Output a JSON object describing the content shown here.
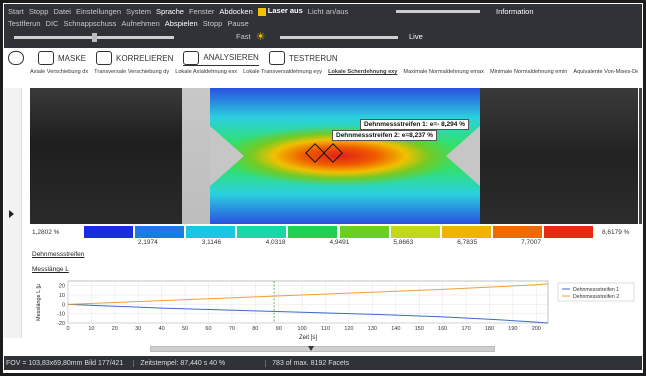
{
  "toolbar": {
    "row1": [
      "Start",
      "Stopp",
      "Datei",
      "Einstellungen",
      "System",
      "Sprache",
      "Fenster",
      "Abdocken",
      "Laser aus",
      "Licht an/aus",
      "Information"
    ],
    "row2": [
      "Testlferun",
      "DIC",
      "Schnappschuss",
      "Aufnehmen",
      "Abspielen",
      "Stopp",
      "Pause"
    ],
    "row3_fast": "Fast",
    "row3_live": "Live"
  },
  "tabs": [
    {
      "label": "MASKE",
      "icon": "mask-icon"
    },
    {
      "label": "KORRELIEREN",
      "icon": "correlate-icon"
    },
    {
      "label": "ANALYSIEREN",
      "icon": "analyze-icon"
    },
    {
      "label": "TESTRERUN",
      "icon": "testrerun-icon"
    }
  ],
  "result_tabs": [
    "Axiale Verschiebung dx",
    "Transversale Verschiebung dy",
    "Lokale Axialdehnung exx",
    "Lokale Transversaldehnung eyy",
    "Lokale Scherdehnung exy",
    "Maximale Normaldehnung emax",
    "Minimale Normaldehnung emin",
    "Äquivalente Von-Mises-Dehnung eeq",
    "Pu"
  ],
  "result_tab_selected": "Lokale Scherdehnung exy",
  "image": {
    "label1": "Dehnmessstreifen 1: e=- 8,294 %",
    "label2": "Dehnmessstreifen 2: e=8,237 %"
  },
  "scale": {
    "min": "1,2802 %",
    "max": "8,6179 %",
    "ticks": [
      "2,1974",
      "3,1146",
      "4,0318",
      "4,9491",
      "5,8663",
      "6,7835",
      "7,7007"
    ],
    "colors": [
      "#1a2ce0",
      "#1a7ae8",
      "#19c6e6",
      "#18d8a8",
      "#20d050",
      "#6ad020",
      "#c0d818",
      "#f0b400",
      "#f06a00",
      "#e82a10"
    ]
  },
  "sections": {
    "a": "Dehnmessstreifen",
    "b": "Messlänge L"
  },
  "chart_data": {
    "type": "line",
    "xlabel": "Zeit [s]",
    "ylabel": "Messlänge L [µ",
    "xlim": [
      0,
      205
    ],
    "ylim": [
      -20,
      25
    ],
    "xticks": [
      "0",
      "10",
      "20",
      "30",
      "40",
      "50",
      "60",
      "70",
      "80",
      "90",
      "100",
      "110",
      "120",
      "130",
      "140",
      "150",
      "160",
      "170",
      "180",
      "190",
      "200"
    ],
    "yticks": [
      "20",
      "10",
      "0",
      "-10",
      "-20"
    ],
    "cursor_x": 88,
    "series": [
      {
        "name": "Dehnmessstreifen 1",
        "color": "#3a6cc8",
        "x": [
          0,
          20,
          40,
          60,
          80,
          100,
          120,
          140,
          160,
          180,
          200,
          205
        ],
        "y": [
          0,
          -2,
          -4,
          -5.5,
          -7,
          -8.5,
          -10,
          -11.5,
          -13.5,
          -16,
          -19,
          -20
        ]
      },
      {
        "name": "Dehnmessstreifen 2",
        "color": "#f0a030",
        "x": [
          0,
          20,
          40,
          60,
          80,
          100,
          120,
          140,
          160,
          180,
          200,
          205
        ],
        "y": [
          0,
          2,
          4,
          6,
          8,
          10,
          12,
          14,
          16,
          18.5,
          21,
          22
        ]
      }
    ]
  },
  "status": {
    "fov": "FOV = 103,83x69,80mm Bild 177/421",
    "time": "Zeitstempel: 87,440 s  40 %",
    "facets": "783 of max. 8192 Facets"
  }
}
